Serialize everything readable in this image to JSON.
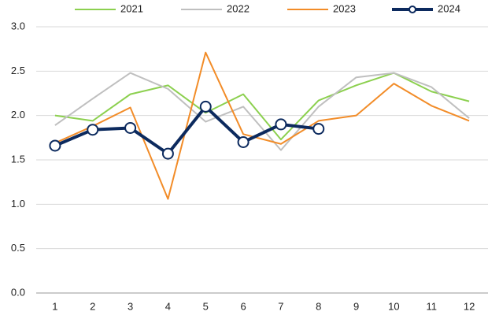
{
  "chart_data": {
    "type": "line",
    "categories": [
      "1",
      "2",
      "3",
      "4",
      "5",
      "6",
      "7",
      "8",
      "9",
      "10",
      "11",
      "12"
    ],
    "series": [
      {
        "name": "2021",
        "color": "#8cd04f",
        "values": [
          2.0,
          1.94,
          2.24,
          2.34,
          2.03,
          2.24,
          1.73,
          2.17,
          2.34,
          2.48,
          2.27,
          2.16
        ]
      },
      {
        "name": "2022",
        "color": "#bfbfbf",
        "values": [
          1.89,
          2.19,
          2.48,
          2.3,
          1.93,
          2.1,
          1.61,
          2.1,
          2.43,
          2.48,
          2.32,
          1.97
        ]
      },
      {
        "name": "2023",
        "color": "#f28c28",
        "values": [
          1.69,
          1.88,
          2.09,
          1.06,
          2.71,
          1.79,
          1.68,
          1.94,
          2.0,
          2.36,
          2.11,
          1.94
        ]
      },
      {
        "name": "2024",
        "color": "#0c2a5e",
        "markers": true,
        "values": [
          1.66,
          1.84,
          1.86,
          1.57,
          2.1,
          1.7,
          1.9,
          1.85,
          null,
          null,
          null,
          null
        ]
      }
    ],
    "ylim": [
      0,
      3
    ],
    "yticks": [
      {
        "value": 0,
        "label": "0.0"
      },
      {
        "value": 0.5,
        "label": "0.5"
      },
      {
        "value": 1,
        "label": "1.0"
      },
      {
        "value": 1.5,
        "label": "1.5"
      },
      {
        "value": 2,
        "label": "2.0"
      },
      {
        "value": 2.5,
        "label": "2.5"
      },
      {
        "value": 3,
        "label": "3.0"
      }
    ],
    "grid": true,
    "legend": "top"
  }
}
